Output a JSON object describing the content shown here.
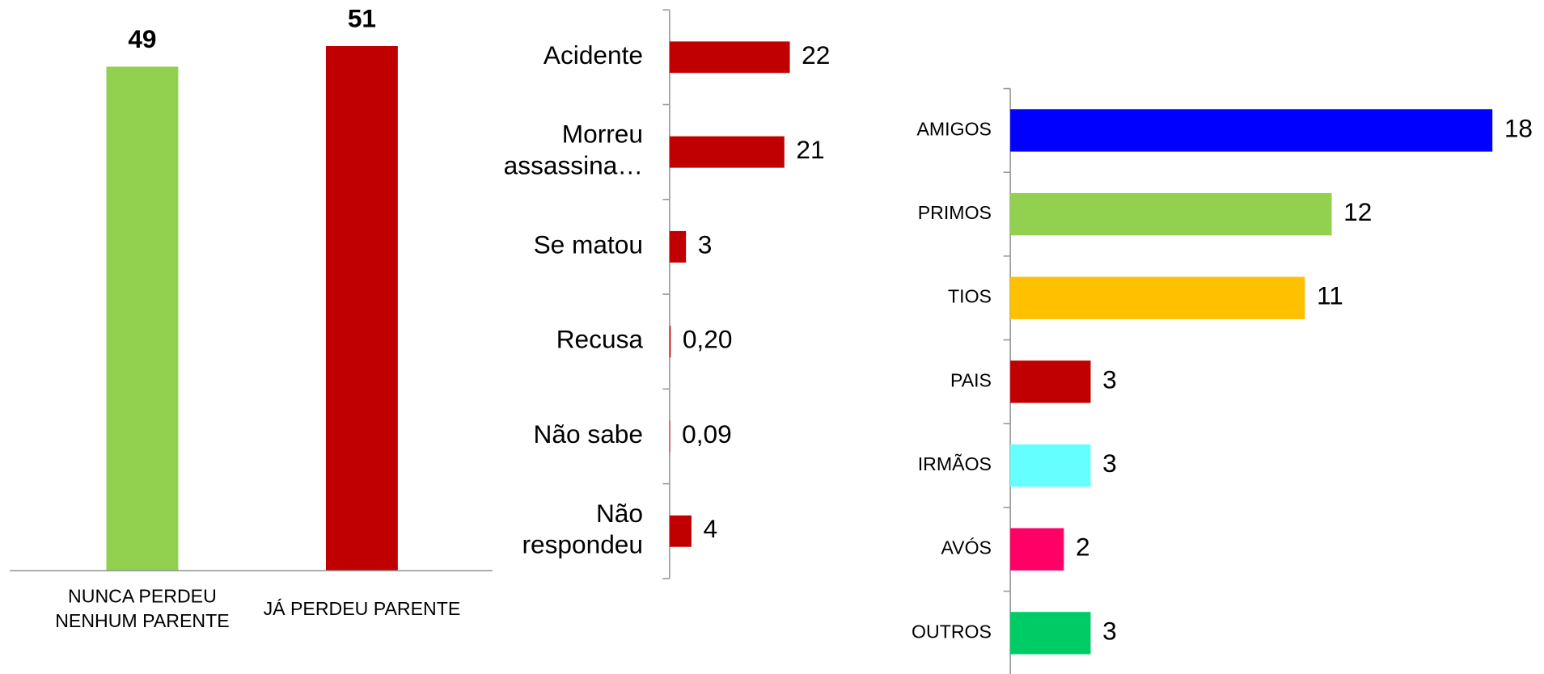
{
  "chart_data": [
    {
      "type": "bar",
      "categories": [
        "NUNCA PERDEU\nNENHUM PARENTE",
        "JÁ PERDEU PARENTE"
      ],
      "values": [
        49,
        51
      ],
      "colors": [
        "#92d050",
        "#c00000"
      ],
      "ylim": [
        0,
        55
      ]
    },
    {
      "type": "hbar",
      "categories": [
        "Acidente",
        "Morreu\nassassina…",
        "Se matou",
        "Recusa",
        "Não sabe",
        "Não\nrespondeu"
      ],
      "values": [
        22,
        21,
        3,
        0.2,
        0.09,
        4
      ],
      "value_labels": [
        "22",
        "21",
        "3",
        "0,20",
        "0,09",
        "4"
      ],
      "color": "#c00000",
      "xlim": [
        0,
        40
      ]
    },
    {
      "type": "hbar",
      "categories": [
        "AMIGOS",
        "PRIMOS",
        "TIOS",
        "PAIS",
        "IRMÃOS",
        "AVÓS",
        "OUTROS"
      ],
      "values": [
        18,
        12,
        11,
        3,
        3,
        2,
        3
      ],
      "colors": [
        "#0000ff",
        "#92d050",
        "#ffc000",
        "#c00000",
        "#66ffff",
        "#ff0066",
        "#00cc66"
      ],
      "xlim": [
        0,
        20
      ]
    }
  ]
}
